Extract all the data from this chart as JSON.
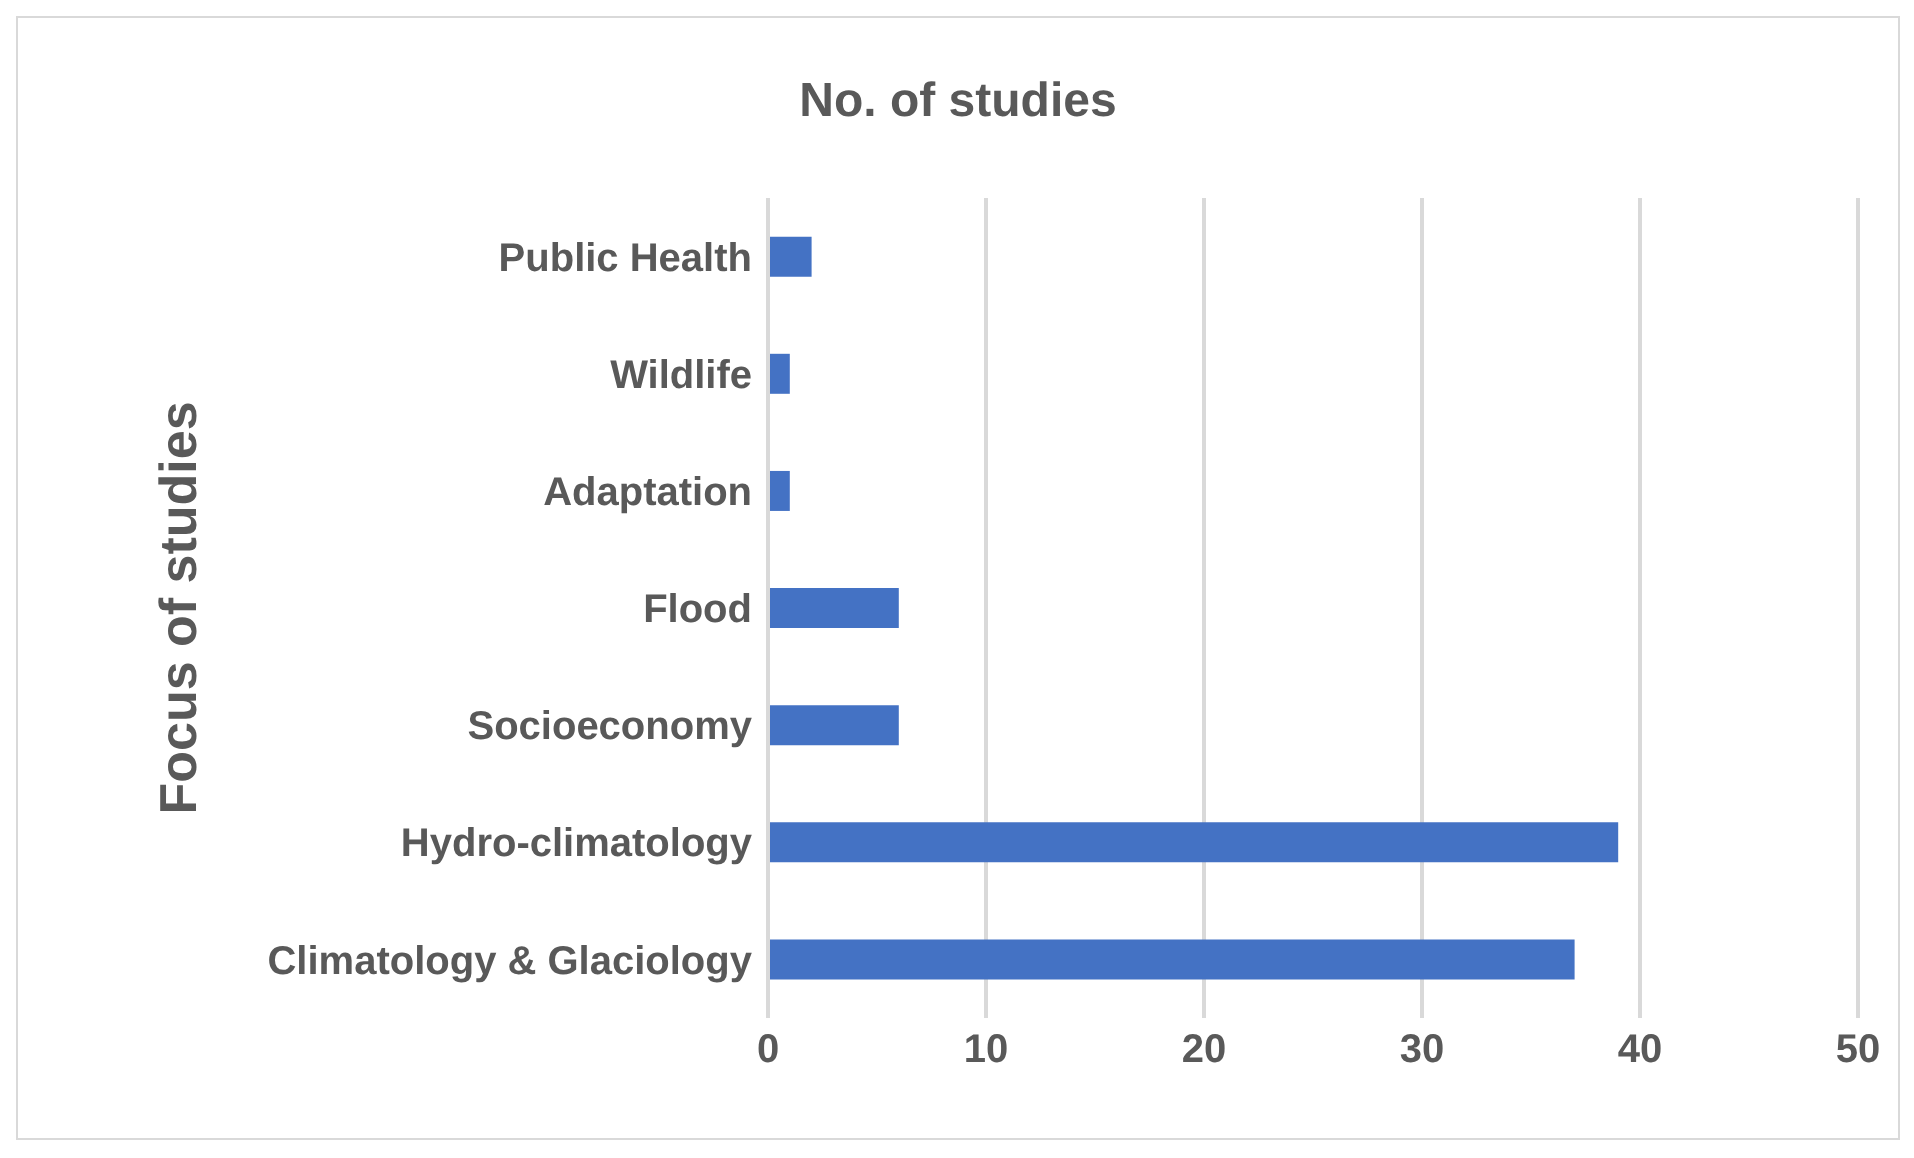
{
  "chart_data": {
    "type": "bar",
    "orientation": "horizontal",
    "title": "No. of studies",
    "ylabel": "Focus of studies",
    "categories": [
      "Public Health",
      "Wildlife",
      "Adaptation",
      "Flood",
      "Socioeconomy",
      "Hydro-climatology",
      "Climatology & Glaciology"
    ],
    "values": [
      2,
      1,
      1,
      6,
      6,
      39,
      37
    ],
    "color": "#4472c4",
    "xlim": [
      0,
      50
    ],
    "xticks": [
      0,
      10,
      20,
      30,
      40,
      50
    ],
    "grid": "x"
  }
}
